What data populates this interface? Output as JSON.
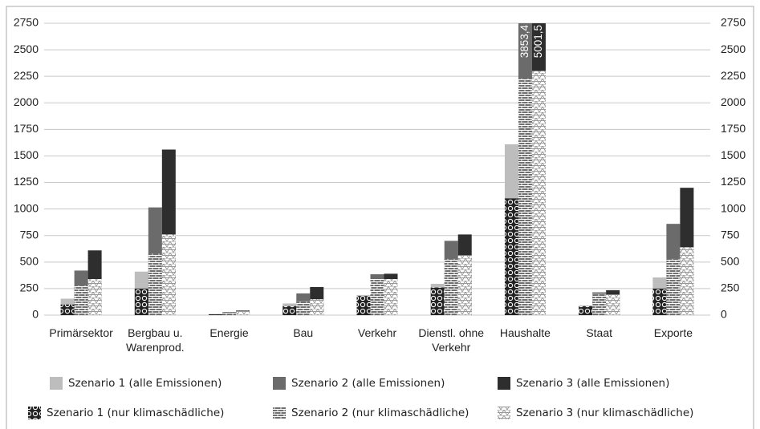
{
  "chart_data": {
    "type": "bar",
    "categories": [
      "Primärsektor",
      "Bergbau u.\nWarenprod.",
      "Energie",
      "Bau",
      "Verkehr",
      "Dienstl. ohne\nVerkehr",
      "Haushalte",
      "Staat",
      "Exporte"
    ],
    "ylim": [
      0,
      2750
    ],
    "yticks": [
      0,
      250,
      500,
      750,
      1000,
      1250,
      1500,
      1750,
      2000,
      2250,
      2500,
      2750
    ],
    "y2lim": [
      0,
      2750
    ],
    "y2ticks": [
      0,
      250,
      500,
      750,
      1000,
      1250,
      1500,
      1750,
      2000,
      2250,
      2500,
      2750
    ],
    "grid": true,
    "legend": "bottom",
    "series": [
      {
        "name": "Szenario 1 (alle Emissionen)",
        "color": "#bdbdbd",
        "values": [
          155,
          410,
          10,
          110,
          190,
          295,
          1610,
          90,
          355
        ]
      },
      {
        "name": "Szenario 2 (alle Emissionen)",
        "color": "#6b6b6b",
        "values": [
          420,
          1015,
          30,
          205,
          385,
          700,
          3853.4,
          215,
          860
        ],
        "value_labels": [
          null,
          null,
          null,
          null,
          null,
          null,
          "3853,4",
          null,
          null
        ]
      },
      {
        "name": "Szenario 3 (alle Emissionen)",
        "color": "#2e2e2e",
        "values": [
          610,
          1560,
          45,
          265,
          390,
          760,
          5001.5,
          235,
          1200
        ],
        "value_labels": [
          null,
          null,
          null,
          null,
          null,
          null,
          "5001,5",
          null,
          null
        ]
      },
      {
        "name": "Szenario 1 (nur klimaschädliche)",
        "color": "#222222",
        "pattern": "circles",
        "values": [
          100,
          250,
          8,
          85,
          180,
          260,
          1100,
          85,
          250
        ]
      },
      {
        "name": "Szenario 2 (nur klimaschädliche)",
        "color": "#707070",
        "pattern": "bricks",
        "values": [
          280,
          580,
          25,
          130,
          340,
          530,
          2230,
          200,
          530
        ]
      },
      {
        "name": "Szenario 3 (nur klimaschädliche)",
        "color": "#9a9a9a",
        "pattern": "triangles",
        "values": [
          340,
          760,
          40,
          150,
          340,
          565,
          2300,
          195,
          640
        ]
      }
    ]
  }
}
